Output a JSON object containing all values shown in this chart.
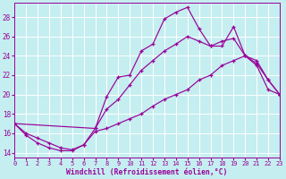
{
  "xlabel": "Windchill (Refroidissement éolien,°C)",
  "bg_color": "#c5eef0",
  "line_color": "#990099",
  "grid_color": "#ffffff",
  "xlim": [
    0,
    23
  ],
  "ylim": [
    13.5,
    29.5
  ],
  "yticks": [
    14,
    16,
    18,
    20,
    22,
    24,
    26,
    28
  ],
  "xticks": [
    0,
    1,
    2,
    3,
    4,
    5,
    6,
    7,
    8,
    9,
    10,
    11,
    12,
    13,
    14,
    15,
    16,
    17,
    18,
    19,
    20,
    21,
    22,
    23
  ],
  "line1_x": [
    0,
    1,
    2,
    3,
    4,
    5,
    6,
    7,
    8,
    9,
    10,
    11,
    12,
    13,
    14,
    15,
    16,
    17,
    18,
    19,
    20,
    21,
    22,
    23
  ],
  "line1_y": [
    17.0,
    16.0,
    15.5,
    15.0,
    14.5,
    14.3,
    14.8,
    16.5,
    19.8,
    21.8,
    22.0,
    24.5,
    25.2,
    27.8,
    28.5,
    29.0,
    26.8,
    25.0,
    25.0,
    27.0,
    24.0,
    23.5,
    21.5,
    20.0
  ],
  "line2_x": [
    0,
    7,
    8,
    9,
    10,
    11,
    12,
    13,
    14,
    15,
    16,
    17,
    18,
    19,
    20,
    21,
    22,
    23
  ],
  "line2_y": [
    17.0,
    16.5,
    18.5,
    19.5,
    21.0,
    22.5,
    23.5,
    24.5,
    25.2,
    26.0,
    25.5,
    25.0,
    25.5,
    25.8,
    24.0,
    23.2,
    21.5,
    20.0
  ],
  "line3_x": [
    0,
    1,
    2,
    3,
    4,
    5,
    6,
    7,
    8,
    9,
    10,
    11,
    12,
    13,
    14,
    15,
    16,
    17,
    18,
    19,
    20,
    21,
    22,
    23
  ],
  "line3_y": [
    17.0,
    15.8,
    15.0,
    14.5,
    14.2,
    14.2,
    14.8,
    16.2,
    16.5,
    17.0,
    17.5,
    18.0,
    18.8,
    19.5,
    20.0,
    20.5,
    21.5,
    22.0,
    23.0,
    23.5,
    24.0,
    23.0,
    20.5,
    20.0
  ]
}
